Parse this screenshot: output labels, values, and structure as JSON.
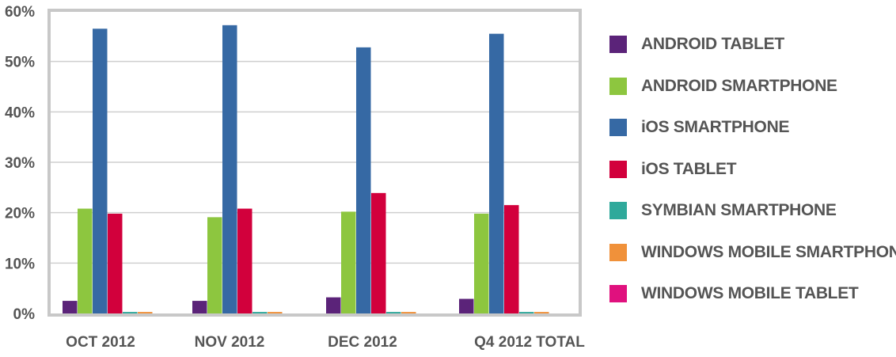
{
  "chart_data": {
    "type": "bar",
    "categories": [
      "OCT 2012",
      "NOV 2012",
      "DEC 2012",
      "Q4 2012 TOTAL"
    ],
    "y_ticks": [
      "0%",
      "10%",
      "20%",
      "30%",
      "40%",
      "50%",
      "60%"
    ],
    "ylim": [
      0,
      60
    ],
    "grid": true,
    "legend_position": "right",
    "series": [
      {
        "name": "ANDROID TABLET",
        "color": "#5b2379",
        "values": [
          2.5,
          2.5,
          3.2,
          2.9
        ]
      },
      {
        "name": "ANDROID SMARTPHONE",
        "color": "#8dc63f",
        "values": [
          20.8,
          19.1,
          20.2,
          19.8
        ]
      },
      {
        "name": "iOS SMARTPHONE",
        "color": "#3669a4",
        "values": [
          56.5,
          57.2,
          52.8,
          55.5
        ]
      },
      {
        "name": "iOS TABLET",
        "color": "#d2003c",
        "values": [
          19.8,
          20.8,
          23.9,
          21.5
        ]
      },
      {
        "name": "SYMBIAN SMARTPHONE",
        "color": "#2fa99b",
        "values": [
          0.3,
          0.3,
          0.3,
          0.3
        ]
      },
      {
        "name": "WINDOWS MOBILE SMARTPHONE",
        "color": "#f0913a",
        "values": [
          0.3,
          0.3,
          0.3,
          0.3
        ]
      },
      {
        "name": "WINDOWS MOBILE TABLET",
        "color": "#e0117e",
        "values": [
          0,
          0,
          0,
          0
        ]
      }
    ]
  }
}
